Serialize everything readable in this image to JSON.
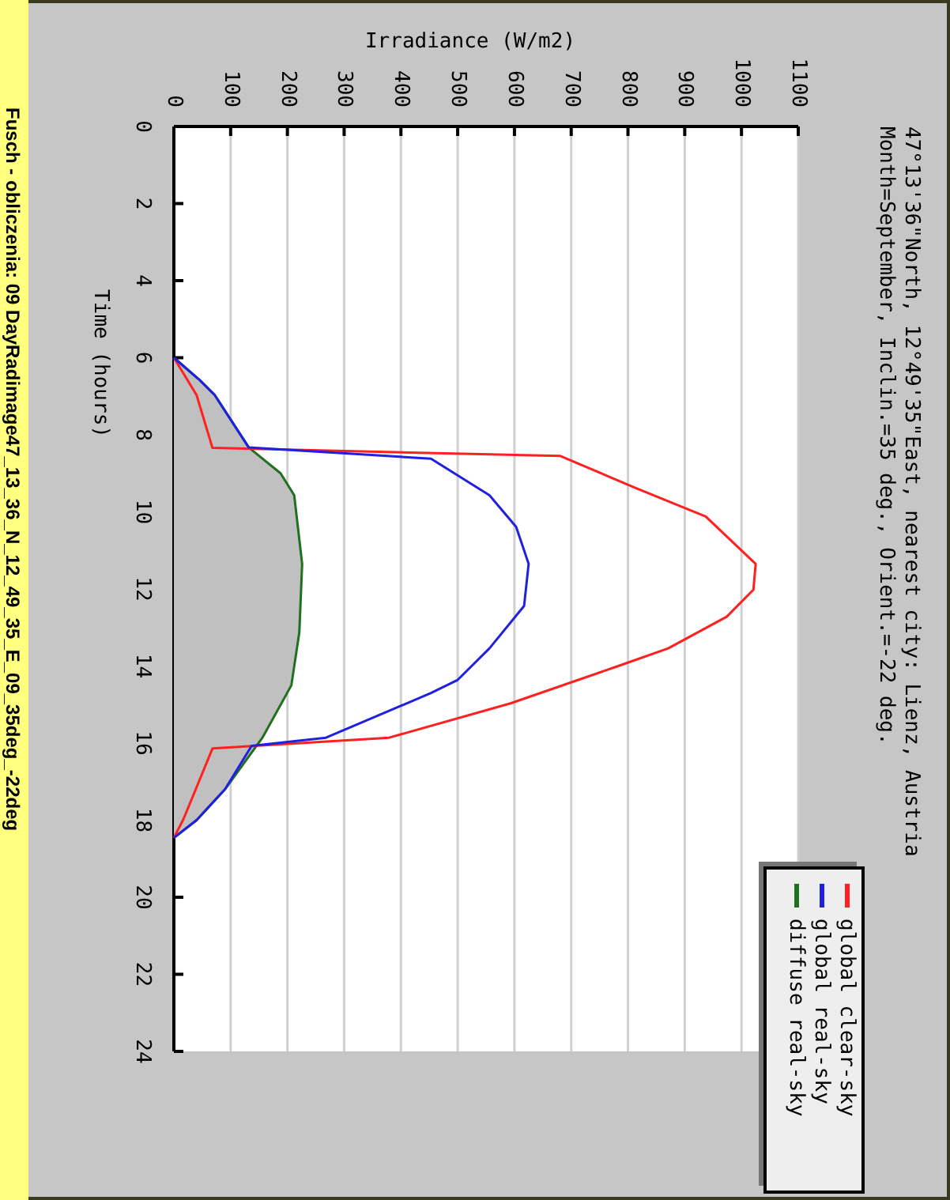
{
  "chart_data": {
    "type": "line",
    "title": "47°13'36\"North, 12°49'35\"East, nearest city: Lienz, Austria",
    "subtitle": "Month=September, Inclin.=35 deg., Orient.=-22 deg.",
    "xlabel": "Irradiance (W/m2)",
    "ylabel": "Time (hours)",
    "annotations": [
      "Fusch - obliczenia: 09 DayRadimage47_13_36_N_12_49_35_E_09_35deg_-22deg"
    ],
    "xlim": [
      0,
      1100
    ],
    "xticks": [
      0,
      100,
      200,
      300,
      400,
      500,
      600,
      700,
      800,
      900,
      1000,
      1100
    ],
    "ylim": [
      24,
      0
    ],
    "yticks": [
      0,
      2,
      4,
      6,
      8,
      10,
      12,
      14,
      16,
      18,
      20,
      22,
      24
    ],
    "grid": "x",
    "legend": "bottom right",
    "series": [
      {
        "name": "global clear-sky",
        "color": "#ff2020",
        "x": [
          0,
          40,
          68,
          681,
          812,
          937,
          1025,
          1021,
          974,
          871,
          779,
          593,
          379,
          68,
          17,
          0
        ],
        "values": [
          6.0,
          6.97,
          8.34,
          8.55,
          9.37,
          10.12,
          11.35,
          12.02,
          12.72,
          13.54,
          14.02,
          14.97,
          15.86,
          16.14,
          17.97,
          18.46
        ]
      },
      {
        "name": "global real-sky",
        "color": "#2020e0",
        "x": [
          0,
          44,
          72,
          132,
          453,
          556,
          603,
          625,
          617,
          556,
          500,
          453,
          268,
          137,
          90,
          40,
          0
        ],
        "values": [
          6.0,
          6.56,
          6.97,
          8.33,
          8.62,
          9.57,
          10.39,
          11.35,
          12.44,
          13.54,
          14.36,
          14.7,
          15.86,
          16.07,
          17.2,
          18.0,
          18.46
        ]
      },
      {
        "name": "diffuse real-sky",
        "type": "area",
        "color": "#207020",
        "x": [
          0,
          44,
          72,
          132,
          188,
          212,
          226,
          221,
          207,
          156,
          90,
          40,
          0
        ],
        "values": [
          6.0,
          6.56,
          6.97,
          8.33,
          9.0,
          9.57,
          11.35,
          13.13,
          14.5,
          15.86,
          17.2,
          18.0,
          18.46
        ]
      }
    ]
  }
}
